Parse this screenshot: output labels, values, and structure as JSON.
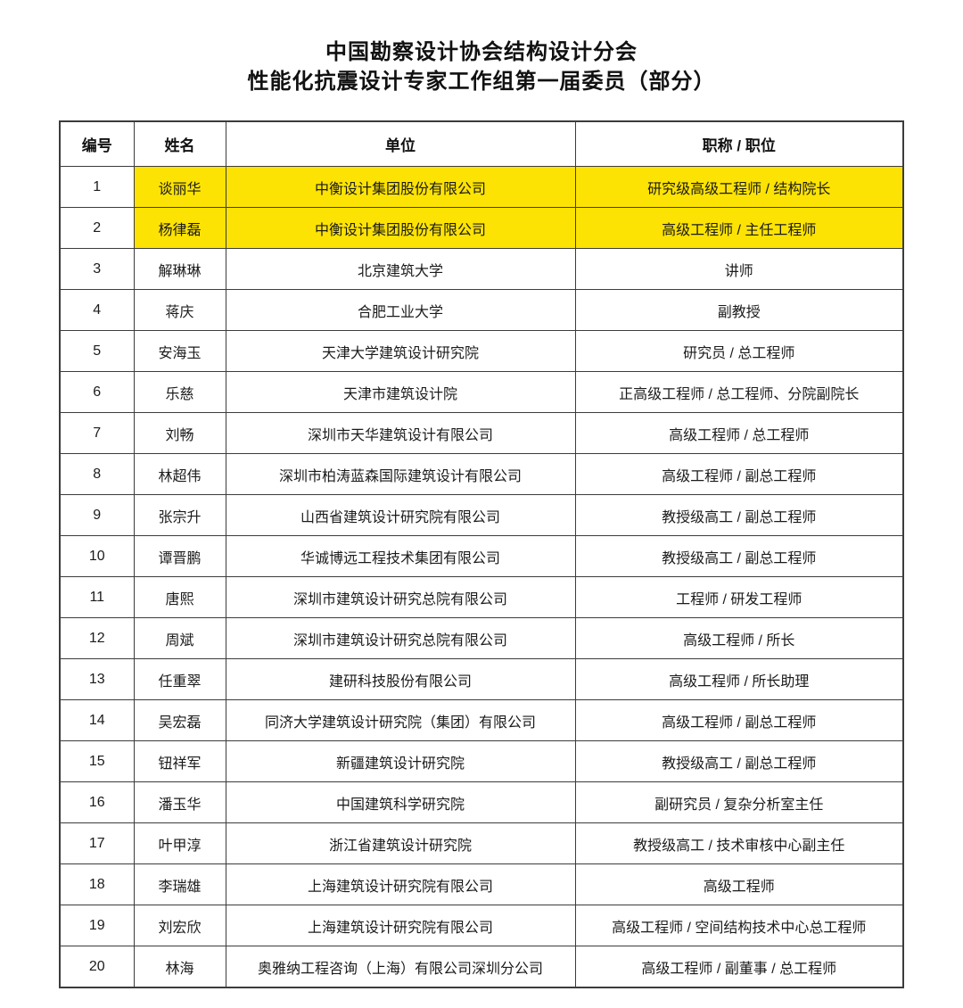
{
  "page": {
    "title_line1": "中国勘察设计协会结构设计分会",
    "title_line2": "性能化抗震设计专家工作组第一届委员（部分）"
  },
  "table": {
    "headers": {
      "number": "编号",
      "name": "姓名",
      "organization": "单位",
      "title": "职称 / 职位"
    },
    "highlight_color": "#fde303",
    "rows": [
      {
        "no": "1",
        "name": "谈丽华",
        "org": "中衡设计集团股份有限公司",
        "title": "研究级高级工程师 / 结构院长",
        "highlighted": true
      },
      {
        "no": "2",
        "name": "杨律磊",
        "org": "中衡设计集团股份有限公司",
        "title": "高级工程师 / 主任工程师",
        "highlighted": true
      },
      {
        "no": "3",
        "name": "解琳琳",
        "org": "北京建筑大学",
        "title": "讲师",
        "highlighted": false
      },
      {
        "no": "4",
        "name": "蒋庆",
        "org": "合肥工业大学",
        "title": "副教授",
        "highlighted": false
      },
      {
        "no": "5",
        "name": "安海玉",
        "org": "天津大学建筑设计研究院",
        "title": "研究员 / 总工程师",
        "highlighted": false
      },
      {
        "no": "6",
        "name": "乐慈",
        "org": "天津市建筑设计院",
        "title": "正高级工程师 / 总工程师、分院副院长",
        "highlighted": false
      },
      {
        "no": "7",
        "name": "刘畅",
        "org": "深圳市天华建筑设计有限公司",
        "title": "高级工程师 / 总工程师",
        "highlighted": false
      },
      {
        "no": "8",
        "name": "林超伟",
        "org": "深圳市柏涛蓝森国际建筑设计有限公司",
        "title": "高级工程师 / 副总工程师",
        "highlighted": false
      },
      {
        "no": "9",
        "name": "张宗升",
        "org": "山西省建筑设计研究院有限公司",
        "title": "教授级高工 / 副总工程师",
        "highlighted": false
      },
      {
        "no": "10",
        "name": "谭晋鹏",
        "org": "华诚博远工程技术集团有限公司",
        "title": "教授级高工 / 副总工程师",
        "highlighted": false
      },
      {
        "no": "11",
        "name": "唐熙",
        "org": "深圳市建筑设计研究总院有限公司",
        "title": "工程师 / 研发工程师",
        "highlighted": false
      },
      {
        "no": "12",
        "name": "周斌",
        "org": "深圳市建筑设计研究总院有限公司",
        "title": "高级工程师 / 所长",
        "highlighted": false
      },
      {
        "no": "13",
        "name": "任重翠",
        "org": "建研科技股份有限公司",
        "title": "高级工程师 / 所长助理",
        "highlighted": false
      },
      {
        "no": "14",
        "name": "吴宏磊",
        "org": "同济大学建筑设计研究院（集团）有限公司",
        "title": "高级工程师 / 副总工程师",
        "highlighted": false
      },
      {
        "no": "15",
        "name": "钮祥军",
        "org": "新疆建筑设计研究院",
        "title": "教授级高工 / 副总工程师",
        "highlighted": false
      },
      {
        "no": "16",
        "name": "潘玉华",
        "org": "中国建筑科学研究院",
        "title": "副研究员 / 复杂分析室主任",
        "highlighted": false
      },
      {
        "no": "17",
        "name": "叶甲淳",
        "org": "浙江省建筑设计研究院",
        "title": "教授级高工 / 技术审核中心副主任",
        "highlighted": false
      },
      {
        "no": "18",
        "name": "李瑞雄",
        "org": "上海建筑设计研究院有限公司",
        "title": "高级工程师",
        "highlighted": false
      },
      {
        "no": "19",
        "name": "刘宏欣",
        "org": "上海建筑设计研究院有限公司",
        "title": "高级工程师 / 空间结构技术中心总工程师",
        "highlighted": false
      },
      {
        "no": "20",
        "name": "林海",
        "org": "奥雅纳工程咨询（上海）有限公司深圳分公司",
        "title": "高级工程师 / 副董事 / 总工程师",
        "highlighted": false
      }
    ]
  }
}
